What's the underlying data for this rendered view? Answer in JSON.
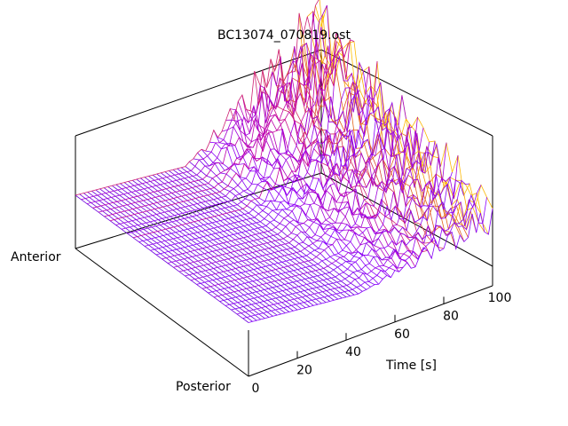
{
  "chart_data": {
    "type": "surface",
    "title": "BC13074_070819.ost",
    "xlabel": "Time [s]",
    "ylabel_front": "Posterior",
    "ylabel_back": "Anterior",
    "xlim": [
      0,
      100
    ],
    "xticks": [
      "0",
      "20",
      "40",
      "60",
      "80",
      "100"
    ],
    "grid": false,
    "colormap": [
      "#5a00c8",
      "#8a00ff",
      "#c400a0",
      "#e05a20",
      "#ffc000"
    ],
    "surface_description_rows": 60,
    "surface_description_cols": 30
  }
}
